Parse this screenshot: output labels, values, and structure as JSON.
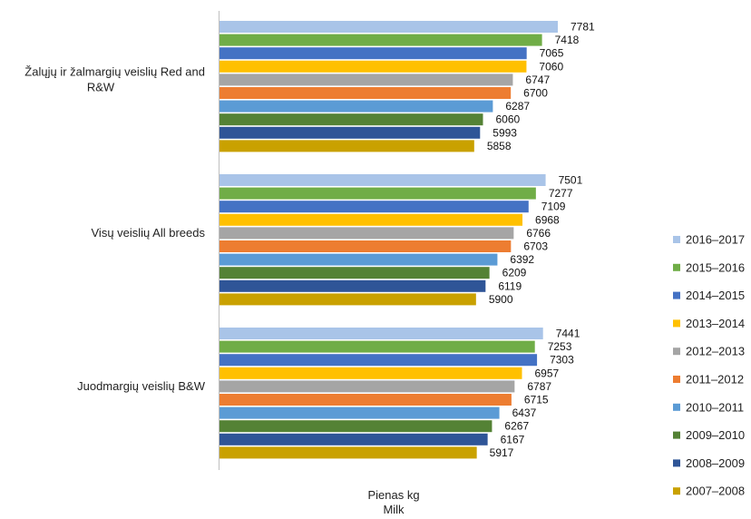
{
  "chart_data": {
    "type": "bar",
    "orientation": "horizontal",
    "categories": [
      [
        "Žalųjų ir žalmargių veislių Red and",
        "R&W"
      ],
      [
        "Visų veislių All breeds"
      ],
      [
        "Juodmargių veislių B&W"
      ]
    ],
    "series": [
      {
        "name": "2016–2017",
        "color": "#a9c4e8",
        "values": [
          7781,
          7501,
          7441
        ]
      },
      {
        "name": "2015–2016",
        "color": "#70ad47",
        "values": [
          7418,
          7277,
          7253
        ]
      },
      {
        "name": "2014–2015",
        "color": "#4472c4",
        "values": [
          7065,
          7109,
          7303
        ]
      },
      {
        "name": "2013–2014",
        "color": "#ffc000",
        "values": [
          7060,
          6968,
          6957
        ]
      },
      {
        "name": "2012–2013",
        "color": "#a5a5a5",
        "values": [
          6747,
          6766,
          6787
        ]
      },
      {
        "name": "2011–2012",
        "color": "#ed7d31",
        "values": [
          6700,
          6703,
          6715
        ]
      },
      {
        "name": "2010–2011",
        "color": "#5b9bd5",
        "values": [
          6287,
          6392,
          6437
        ]
      },
      {
        "name": "2009–2010",
        "color": "#548235",
        "values": [
          6060,
          6209,
          6267
        ]
      },
      {
        "name": "2008–2009",
        "color": "#2f5597",
        "values": [
          5993,
          6119,
          6167
        ]
      },
      {
        "name": "2007–2008",
        "color": "#c9a100",
        "values": [
          5858,
          5900,
          5917
        ]
      }
    ],
    "xlabel": [
      "Pienas kg",
      "Milk"
    ],
    "xlim": [
      0,
      7781
    ],
    "grid": false,
    "legend_position": "right"
  }
}
